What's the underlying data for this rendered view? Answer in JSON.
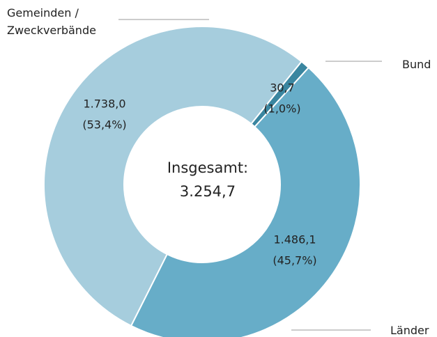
{
  "chart_data": {
    "type": "donut",
    "categories": [
      "Bund",
      "Länder",
      "Gemeinden / Zweckverbände"
    ],
    "values": [
      30.7,
      1486.1,
      1738.0
    ],
    "value_labels": [
      "30,7",
      "1.486,1",
      "1.738,0"
    ],
    "percents": [
      1.0,
      45.7,
      53.4
    ],
    "percent_labels": [
      "(1,0%)",
      "(45,7%)",
      "(53,4%)"
    ],
    "colors": [
      "#3a86a0",
      "#67adc8",
      "#a6cddd"
    ],
    "center_label": "Insgesamt:",
    "total": 3254.7,
    "total_label": "3.254,7"
  }
}
